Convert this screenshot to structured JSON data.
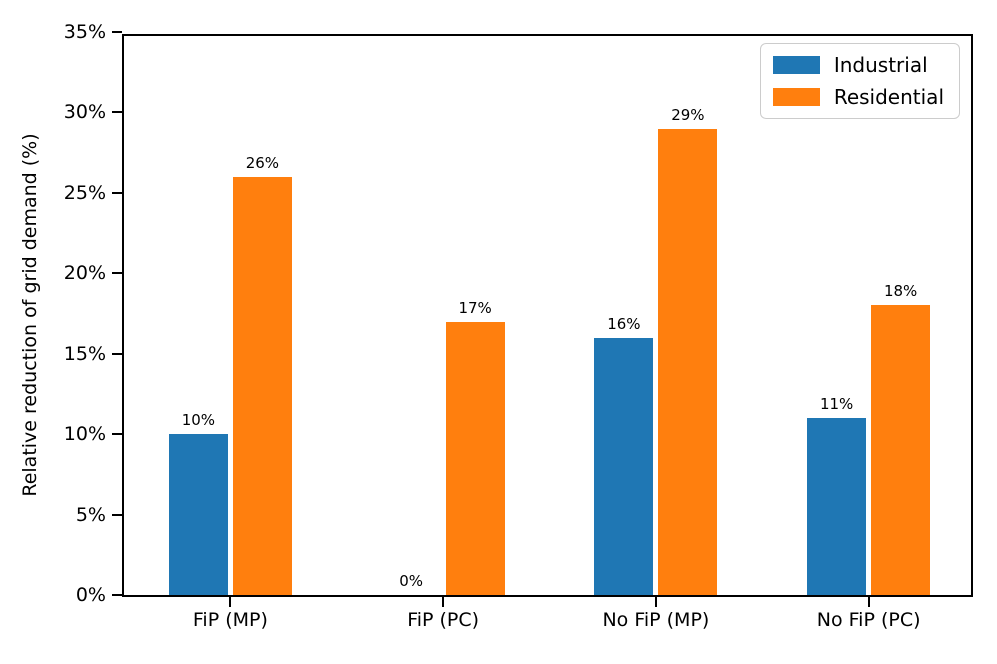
{
  "figure": {
    "background": "#ffffff",
    "axis_color": "#000000"
  },
  "chart_data": {
    "type": "bar",
    "title": "",
    "xlabel": "",
    "ylabel": "Relative reduction of grid demand (%)",
    "categories": [
      "FiP (MP)",
      "FiP (PC)",
      "No FiP (MP)",
      "No FiP (PC)"
    ],
    "series": [
      {
        "name": "Industrial",
        "color": "#1f77b4",
        "values": [
          10,
          0,
          16,
          11
        ],
        "value_labels": [
          "10%",
          "0%",
          "16%",
          "11%"
        ]
      },
      {
        "name": "Residential",
        "color": "#ff7f0e",
        "values": [
          26,
          17,
          29,
          18
        ],
        "value_labels": [
          "26%",
          "17%",
          "29%",
          "18%"
        ]
      }
    ],
    "ylim": [
      0,
      35
    ],
    "yticks": [
      0,
      5,
      10,
      15,
      20,
      25,
      30,
      35
    ],
    "ytick_labels": [
      "0%",
      "5%",
      "10%",
      "15%",
      "20%",
      "25%",
      "30%",
      "35%"
    ],
    "grid": false,
    "legend_position": "upper right"
  }
}
